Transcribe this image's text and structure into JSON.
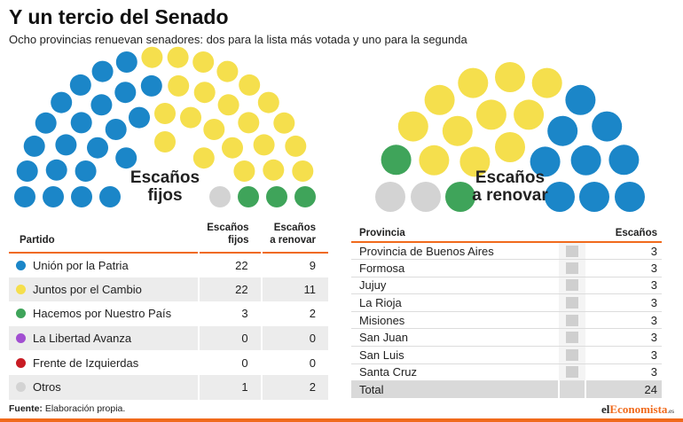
{
  "header": {
    "title": "Y un tercio del Senado",
    "subtitle": "Ocho provincias renuevan senadores: dos para la lista más votada y uno para la segunda"
  },
  "colors": {
    "Unión por la Patria": "#1b86c8",
    "Juntos por el Cambio": "#f5df4d",
    "Hacemos por Nuestro País": "#3fa45a",
    "La Libertad Avanza": "#a24fd1",
    "Frente de Izquierdas": "#c81c24",
    "Otros": "#d3d3d3",
    "accent": "#f06a1c"
  },
  "chart_data": [
    {
      "type": "hemicycle",
      "label_line1": "Escaños",
      "label_line2": "fijos",
      "parties": [
        "Unión por la Patria",
        "Juntos por el Cambio",
        "Hacemos por Nuestro País",
        "La Libertad Avanza",
        "Frente de Izquierdas",
        "Otros"
      ],
      "values": [
        22,
        22,
        3,
        0,
        0,
        1
      ]
    },
    {
      "type": "hemicycle",
      "label_line1": "Escaños",
      "label_line2": "a renovar",
      "parties": [
        "Otros",
        "Hacemos por Nuestro País",
        "Juntos por el Cambio",
        "Unión por la Patria"
      ],
      "values": [
        2,
        2,
        11,
        9
      ]
    }
  ],
  "party_table": {
    "col_party": "Partido",
    "col_fixed_1": "Escaños",
    "col_fixed_2": "fijos",
    "col_renew_1": "Escaños",
    "col_renew_2": "a renovar",
    "rows": [
      {
        "party": "Unión por la Patria",
        "fixed": "22",
        "renew": "9",
        "color": "#1b86c8"
      },
      {
        "party": "Juntos por el Cambio",
        "fixed": "22",
        "renew": "11",
        "color": "#f5df4d"
      },
      {
        "party": "Hacemos por Nuestro País",
        "fixed": "3",
        "renew": "2",
        "color": "#3fa45a"
      },
      {
        "party": "La Libertad Avanza",
        "fixed": "0",
        "renew": "0",
        "color": "#a24fd1"
      },
      {
        "party": "Frente de Izquierdas",
        "fixed": "0",
        "renew": "0",
        "color": "#c81c24"
      },
      {
        "party": "Otros",
        "fixed": "1",
        "renew": "2",
        "color": "#d3d3d3"
      }
    ]
  },
  "province_table": {
    "col_province": "Provincia",
    "col_seats": "Escaños",
    "rows": [
      {
        "province": "Provincia de Buenos Aires",
        "seats": "3"
      },
      {
        "province": "Formosa",
        "seats": "3"
      },
      {
        "province": "Jujuy",
        "seats": "3"
      },
      {
        "province": "La Rioja",
        "seats": "3"
      },
      {
        "province": "Misiones",
        "seats": "3"
      },
      {
        "province": "San Juan",
        "seats": "3"
      },
      {
        "province": "San Luis",
        "seats": "3"
      },
      {
        "province": "Santa Cruz",
        "seats": "3"
      }
    ],
    "total_label": "Total",
    "total_value": "24"
  },
  "footer": {
    "source_label": "Fuente:",
    "source_text": "Elaboración propia.",
    "logo_part1": "el",
    "logo_part2": "Economista",
    "logo_part3": ".es"
  }
}
